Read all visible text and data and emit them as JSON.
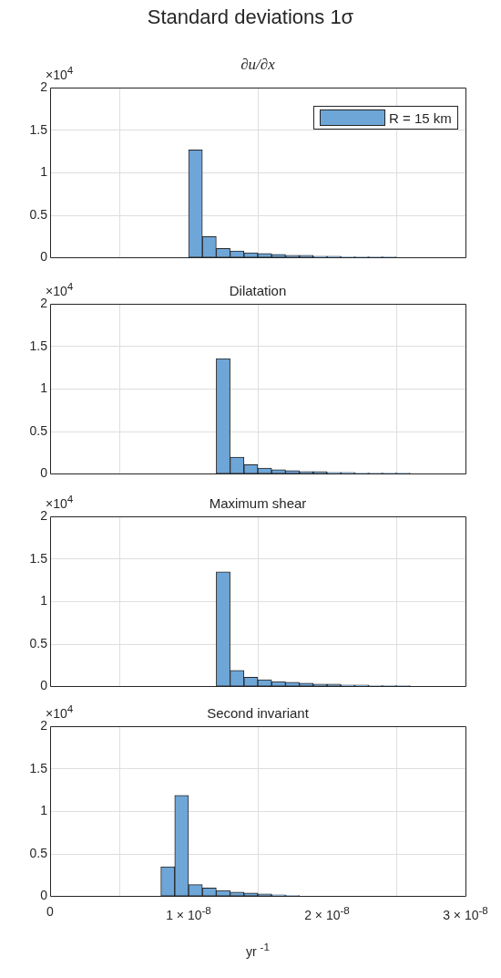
{
  "chart_data": [
    {
      "type": "histogram",
      "title": "Standard deviations 1σ",
      "subtitle": "∂u/∂x",
      "annotations": [
        "×10$^{4}$"
      ],
      "bins": [
        1e-08,
        1.1e-08,
        1.2e-08,
        1.3e-08,
        1.4e-08,
        1.5e-08,
        1.6e-08,
        1.7e-08,
        1.8e-08,
        1.9e-08,
        2e-08,
        2.1e-08,
        2.2e-08,
        2.3e-08,
        2.4e-08,
        2.5e-08
      ],
      "series": [
        {
          "name": "R = 15 km",
          "color": "#6ea6d8",
          "values": [
            1.27,
            0.25,
            0.11,
            0.08,
            0.06,
            0.05,
            0.04,
            0.03,
            0.03,
            0.02,
            0.02,
            0.01,
            0.01,
            0.01,
            0.01
          ]
        }
      ],
      "xlim": [
        0,
        3e-08
      ],
      "xticks": [
        {
          "value": 0,
          "label": null
        },
        {
          "value": 1e-08,
          "label": null
        },
        {
          "value": 2e-08,
          "label": null
        },
        {
          "value": 3e-08,
          "label": null
        }
      ],
      "ylim": [
        0,
        2
      ],
      "yticks": [
        0,
        0.5,
        1,
        1.5,
        2
      ],
      "grid": true,
      "legend": "top right",
      "tick_labels": "y"
    },
    {
      "type": "histogram",
      "title": "Dilatation",
      "annotations": [
        "×10$^{4}$"
      ],
      "bins": [
        1.2e-08,
        1.3e-08,
        1.4e-08,
        1.5e-08,
        1.6e-08,
        1.7e-08,
        1.8e-08,
        1.9e-08,
        2e-08,
        2.1e-08,
        2.2e-08,
        2.3e-08,
        2.4e-08,
        2.5e-08,
        2.6e-08
      ],
      "series": [
        {
          "color": "#6ea6d8",
          "values": [
            1.36,
            0.2,
            0.11,
            0.07,
            0.05,
            0.04,
            0.03,
            0.03,
            0.02,
            0.02,
            0.01,
            0.01,
            0.01,
            0.01
          ]
        }
      ],
      "xlim": [
        0,
        3e-08
      ],
      "xticks": [
        {
          "value": 0,
          "label": null
        },
        {
          "value": 1e-08,
          "label": null
        },
        {
          "value": 2e-08,
          "label": null
        },
        {
          "value": 3e-08,
          "label": null
        }
      ],
      "ylim": [
        0,
        2
      ],
      "yticks": [
        0,
        0.5,
        1,
        1.5,
        2
      ],
      "grid": true,
      "tick_labels": "y"
    },
    {
      "type": "histogram",
      "title": "Maximum shear",
      "annotations": [
        "×10$^{4}$"
      ],
      "bins": [
        1.2e-08,
        1.3e-08,
        1.4e-08,
        1.5e-08,
        1.6e-08,
        1.7e-08,
        1.8e-08,
        1.9e-08,
        2e-08,
        2.1e-08,
        2.2e-08,
        2.3e-08,
        2.4e-08,
        2.5e-08,
        2.6e-08
      ],
      "series": [
        {
          "color": "#6ea6d8",
          "values": [
            1.35,
            0.19,
            0.11,
            0.08,
            0.06,
            0.05,
            0.04,
            0.03,
            0.03,
            0.02,
            0.02,
            0.01,
            0.01,
            0.01
          ]
        }
      ],
      "xlim": [
        0,
        3e-08
      ],
      "xticks": [
        {
          "value": 0,
          "label": null
        },
        {
          "value": 1e-08,
          "label": null
        },
        {
          "value": 2e-08,
          "label": null
        },
        {
          "value": 3e-08,
          "label": null
        }
      ],
      "ylim": [
        0,
        2
      ],
      "yticks": [
        0,
        0.5,
        1,
        1.5,
        2
      ],
      "grid": true,
      "tick_labels": "y"
    },
    {
      "type": "histogram",
      "title": "Second invariant",
      "annotations": [
        "×10$^{4}$"
      ],
      "xlabel": "yr $^{-1}$",
      "bins": [
        8e-09,
        9e-09,
        1e-08,
        1.1e-08,
        1.2e-08,
        1.3e-08,
        1.4e-08,
        1.5e-08,
        1.6e-08,
        1.7e-08,
        1.8e-08
      ],
      "series": [
        {
          "color": "#6ea6d8",
          "values": [
            0.35,
            1.19,
            0.14,
            0.1,
            0.07,
            0.05,
            0.04,
            0.03,
            0.02,
            0.01
          ]
        }
      ],
      "xlim": [
        0,
        3e-08
      ],
      "xticks": [
        0,
        {
          "value": 1e-08,
          "label": "1 × 10$^{-8}$"
        },
        {
          "value": 2e-08,
          "label": "2 × 10$^{-8}$"
        },
        {
          "value": 3e-08,
          "label": "3 × 10$^{-8}$"
        }
      ],
      "ylim": [
        0,
        2
      ],
      "yticks": [
        0,
        0.5,
        1,
        1.5,
        2
      ],
      "grid": true
    }
  ]
}
